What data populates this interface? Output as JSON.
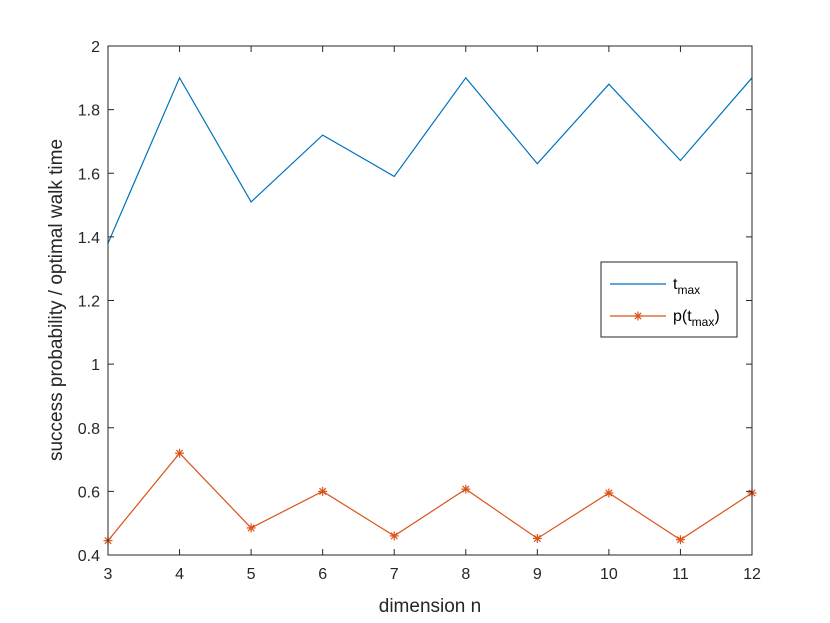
{
  "chart_data": {
    "type": "line",
    "xlabel": "dimension n",
    "ylabel": "success probability / optimal walk time",
    "xlim": [
      3,
      12
    ],
    "ylim": [
      0.4,
      2
    ],
    "x": [
      3,
      4,
      5,
      6,
      7,
      8,
      9,
      10,
      11,
      12
    ],
    "xticks": [
      "3",
      "4",
      "5",
      "6",
      "7",
      "8",
      "9",
      "10",
      "11",
      "12"
    ],
    "yticks": [
      "0.4",
      "0.6",
      "0.8",
      "1",
      "1.2",
      "1.4",
      "1.6",
      "1.8",
      "2"
    ],
    "series": [
      {
        "name": "t",
        "name_subscript": "max",
        "color": "#0072BD",
        "marker": "none",
        "values": [
          1.38,
          1.9,
          1.51,
          1.72,
          1.59,
          1.9,
          1.63,
          1.88,
          1.64,
          1.9
        ]
      },
      {
        "name": "p(t",
        "name_subscript": "max",
        "name_suffix": ")",
        "color": "#D95319",
        "marker": "asterisk",
        "values": [
          0.445,
          0.72,
          0.485,
          0.6,
          0.46,
          0.607,
          0.452,
          0.595,
          0.448,
          0.595
        ]
      }
    ],
    "grid": false,
    "legend_position": "right"
  }
}
